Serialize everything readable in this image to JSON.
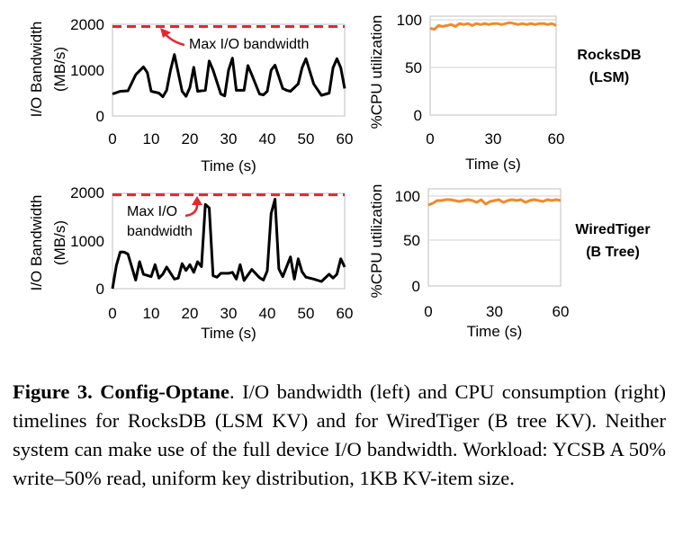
{
  "chart_data": [
    {
      "type": "line",
      "system": "rocksdb",
      "xlabel": "Time (s)",
      "ylabel": [
        "I/O Bandwidth",
        "(MB/s)"
      ],
      "xlim": [
        0,
        60
      ],
      "ylim": [
        0,
        2000
      ],
      "xticks": [
        "0",
        "10",
        "20",
        "30",
        "40",
        "50",
        "60"
      ],
      "yticks": [
        "0",
        "1000",
        "2000"
      ],
      "grid": false,
      "series_color": "#000000",
      "reference_line": {
        "value": 1950,
        "color": "#e8262b",
        "label": "Max I/O bandwidth"
      },
      "x": [
        0,
        2,
        4,
        6,
        8,
        9,
        10,
        12,
        13,
        14,
        15,
        16,
        18,
        19,
        20,
        21,
        22,
        24,
        25,
        26,
        28,
        29,
        30,
        31,
        32,
        34,
        35,
        36,
        38,
        39,
        40,
        41,
        42,
        44,
        45,
        46,
        48,
        49,
        50,
        52,
        54,
        56,
        57,
        58,
        59,
        60
      ],
      "values": [
        480,
        540,
        550,
        900,
        1070,
        950,
        540,
        500,
        420,
        560,
        1000,
        1340,
        540,
        430,
        620,
        1060,
        540,
        560,
        1200,
        1000,
        480,
        440,
        1000,
        1260,
        560,
        560,
        1100,
        900,
        480,
        460,
        540,
        1000,
        1110,
        600,
        560,
        540,
        700,
        1050,
        1250,
        700,
        450,
        500,
        1050,
        1250,
        1050,
        600
      ]
    },
    {
      "type": "line",
      "system": "rocksdb",
      "xlabel": "Time (s)",
      "ylabel": "%CPU utilization",
      "xlim": [
        0,
        60
      ],
      "ylim": [
        0,
        100
      ],
      "xticks": [
        "0",
        "30",
        "60"
      ],
      "yticks": [
        "0",
        "50",
        "100"
      ],
      "grid": true,
      "series_color": "#f08a2c",
      "x": [
        0,
        2,
        4,
        6,
        8,
        10,
        12,
        14,
        16,
        18,
        20,
        22,
        24,
        26,
        28,
        30,
        32,
        34,
        36,
        38,
        40,
        42,
        44,
        46,
        48,
        50,
        52,
        54,
        56,
        58,
        60
      ],
      "values": [
        91,
        90,
        94,
        93,
        94,
        95,
        93,
        96,
        95,
        96,
        94,
        96,
        95,
        96,
        95,
        96,
        96,
        95,
        96,
        97,
        96,
        95,
        96,
        95,
        96,
        95,
        96,
        96,
        95,
        96,
        94
      ]
    },
    {
      "type": "line",
      "system": "wiredtiger",
      "xlabel": "Time (s)",
      "ylabel": [
        "I/O Bandwidth",
        "(MB/s)"
      ],
      "xlim": [
        0,
        60
      ],
      "ylim": [
        0,
        2000
      ],
      "xticks": [
        "0",
        "10",
        "20",
        "30",
        "40",
        "50",
        "60"
      ],
      "yticks": [
        "0",
        "1000",
        "2000"
      ],
      "grid": false,
      "series_color": "#000000",
      "reference_line": {
        "value": 1950,
        "color": "#e8262b",
        "label": [
          "Max I/O",
          "bandwidth"
        ]
      },
      "x": [
        0,
        1,
        2,
        3,
        4,
        6,
        7,
        8,
        10,
        11,
        12,
        13,
        14,
        16,
        17,
        18,
        19,
        20,
        21,
        22,
        23,
        24,
        25,
        26,
        27,
        28,
        30,
        31,
        32,
        33,
        34,
        36,
        38,
        39,
        40,
        41,
        42,
        43,
        44,
        46,
        47,
        48,
        49,
        50,
        52,
        54,
        56,
        57,
        58,
        59,
        60
      ],
      "values": [
        0,
        480,
        760,
        760,
        720,
        180,
        560,
        300,
        250,
        500,
        220,
        300,
        450,
        200,
        220,
        520,
        380,
        500,
        340,
        560,
        460,
        1750,
        1680,
        270,
        240,
        320,
        320,
        340,
        200,
        500,
        170,
        400,
        230,
        180,
        370,
        1560,
        1860,
        410,
        250,
        660,
        200,
        620,
        350,
        240,
        200,
        150,
        300,
        220,
        300,
        620,
        450
      ]
    },
    {
      "type": "line",
      "system": "wiredtiger",
      "xlabel": "Time (s)",
      "ylabel": "%CPU utilization",
      "xlim": [
        0,
        60
      ],
      "ylim": [
        0,
        100
      ],
      "xticks": [
        "0",
        "30",
        "60"
      ],
      "yticks": [
        "0",
        "50",
        "100"
      ],
      "grid": true,
      "series_color": "#f08a2c",
      "x": [
        0,
        2,
        4,
        6,
        8,
        10,
        12,
        14,
        16,
        18,
        20,
        22,
        24,
        26,
        28,
        30,
        32,
        34,
        36,
        38,
        40,
        42,
        44,
        46,
        48,
        50,
        52,
        54,
        56,
        58,
        60
      ],
      "values": [
        90,
        92,
        95,
        95,
        96,
        96,
        95,
        94,
        95,
        96,
        95,
        93,
        96,
        91,
        94,
        95,
        96,
        93,
        95,
        96,
        95,
        96,
        93,
        95,
        96,
        95,
        94,
        96,
        95,
        96,
        95
      ]
    }
  ],
  "labels": {
    "rocksdb": [
      "RocksDB",
      "(LSM)"
    ],
    "wiredtiger": [
      "WiredTiger",
      "(B Tree)"
    ]
  },
  "caption": {
    "bold": "Figure 3. Config-Optane",
    "text": ". I/O bandwidth (left) and CPU consumption (right) timelines for RocksDB (LSM KV) and for WiredTiger (B tree KV). Neither system can make use of the full device I/O bandwidth. Workload: YCSB A 50% write–50% read, uniform key distribution, 1KB KV-item size."
  }
}
